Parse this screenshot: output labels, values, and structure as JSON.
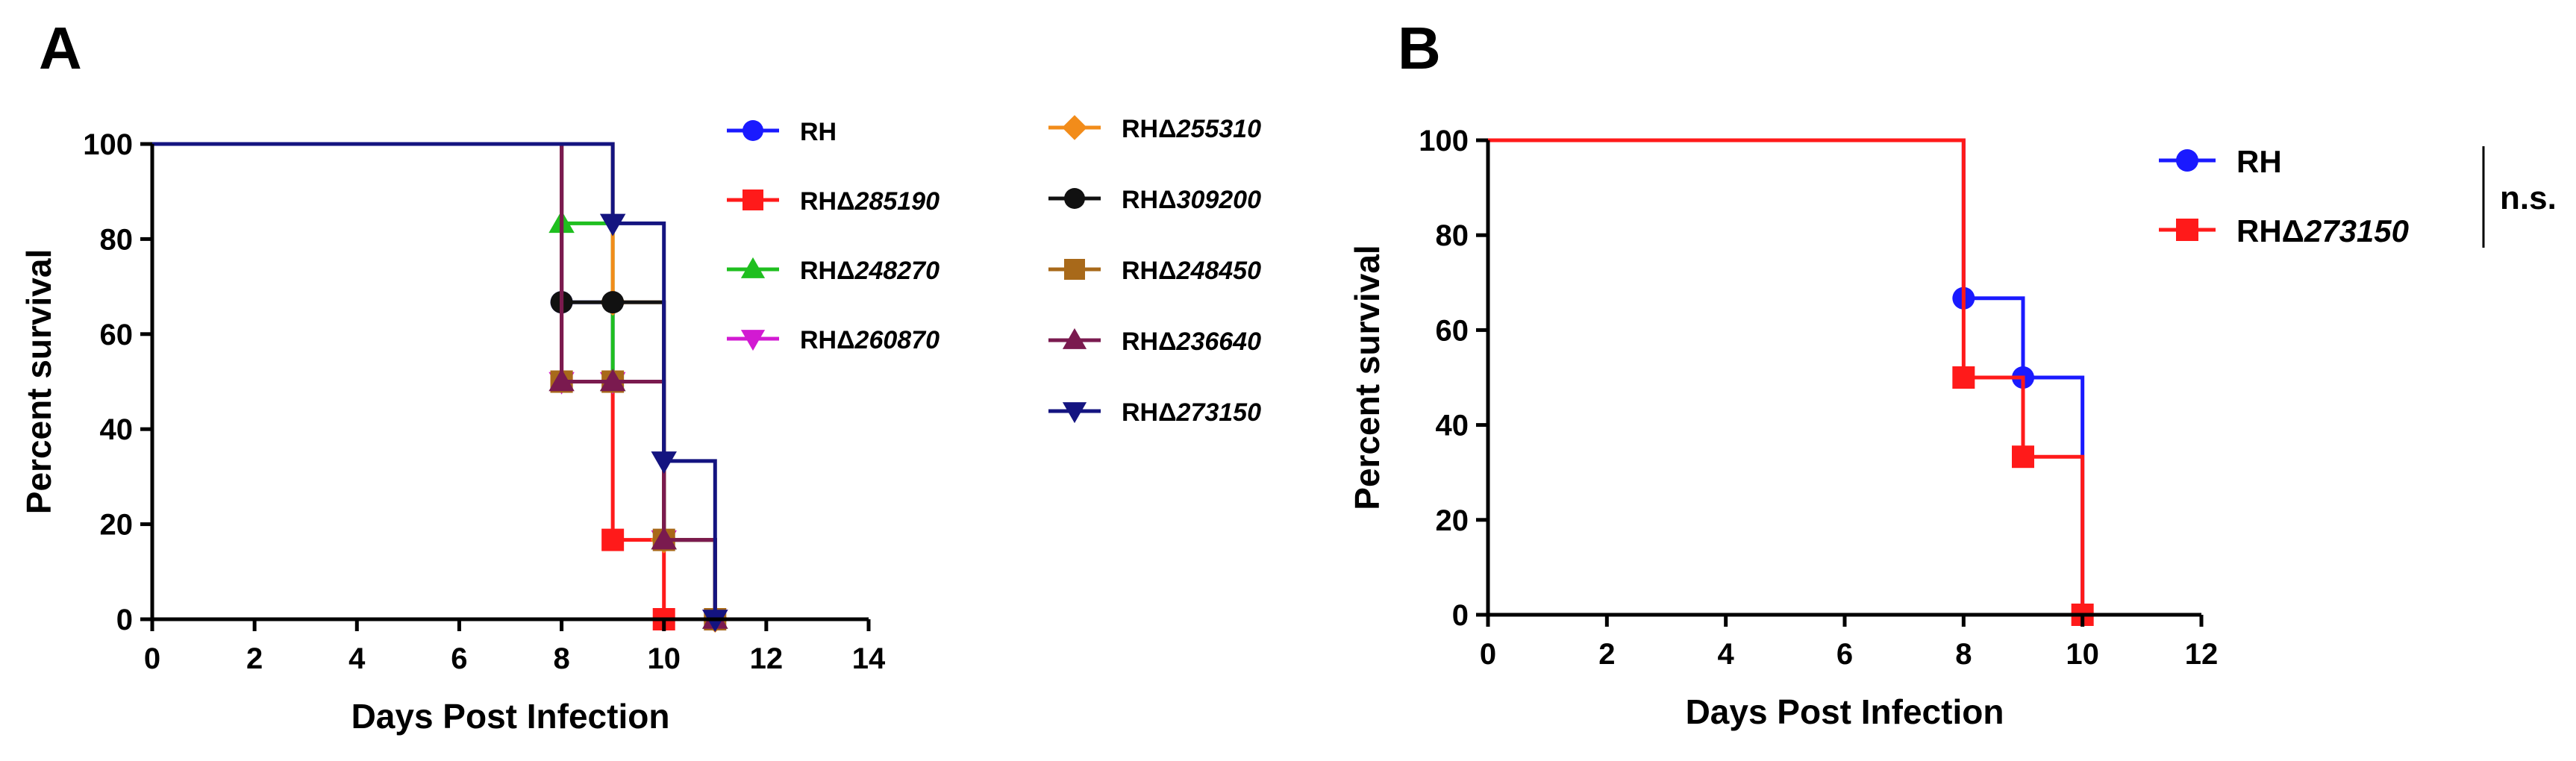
{
  "chart_data": [
    {
      "panel": "A",
      "type": "line",
      "subtype": "kaplan-meier-step",
      "title": "",
      "xlabel": "Days Post Infection",
      "ylabel": "Percent survival",
      "xlim": [
        0,
        14
      ],
      "ylim": [
        0,
        100
      ],
      "xticks": [
        0,
        2,
        4,
        6,
        8,
        10,
        12,
        14
      ],
      "yticks": [
        0,
        20,
        40,
        60,
        80,
        100
      ],
      "legend_position": "right",
      "series": [
        {
          "prefix": "RH",
          "strain": "",
          "color": "#1a1aff",
          "marker": "circle",
          "x": [
            0,
            8,
            9,
            10,
            11
          ],
          "y": [
            100,
            66.7,
            50,
            16.7,
            0
          ]
        },
        {
          "prefix": "RHΔ",
          "strain": "285190",
          "color": "#ff1a1a",
          "marker": "square",
          "x": [
            0,
            8,
            9,
            10
          ],
          "y": [
            100,
            50,
            16.7,
            0
          ]
        },
        {
          "prefix": "RHΔ",
          "strain": "248270",
          "color": "#1fbf1f",
          "marker": "triangle-up",
          "x": [
            0,
            8,
            9,
            10,
            11
          ],
          "y": [
            100,
            83.3,
            50,
            16.7,
            0
          ]
        },
        {
          "prefix": "RHΔ",
          "strain": "260870",
          "color": "#d21ad2",
          "marker": "triangle-down",
          "x": [
            0,
            8,
            9,
            10,
            11
          ],
          "y": [
            100,
            50,
            50,
            16.7,
            0
          ]
        },
        {
          "prefix": "RHΔ",
          "strain": "255310",
          "color": "#f28c1a",
          "marker": "diamond",
          "x": [
            0,
            9,
            10,
            11
          ],
          "y": [
            100,
            66.7,
            16.7,
            0
          ]
        },
        {
          "prefix": "RHΔ",
          "strain": "309200",
          "color": "#111111",
          "marker": "circle",
          "x": [
            0,
            8,
            9,
            10,
            11
          ],
          "y": [
            100,
            66.7,
            66.7,
            16.7,
            0
          ]
        },
        {
          "prefix": "RHΔ",
          "strain": "248450",
          "color": "#a8691a",
          "marker": "square",
          "x": [
            0,
            8,
            9,
            10,
            11
          ],
          "y": [
            100,
            50,
            50,
            16.7,
            0
          ]
        },
        {
          "prefix": "RHΔ",
          "strain": "236640",
          "color": "#7a1a4f",
          "marker": "triangle-up",
          "x": [
            0,
            8,
            9,
            10,
            11
          ],
          "y": [
            100,
            50,
            50,
            16.7,
            0
          ]
        },
        {
          "prefix": "RHΔ",
          "strain": "273150",
          "color": "#141480",
          "marker": "triangle-down",
          "x": [
            0,
            9,
            10,
            11
          ],
          "y": [
            100,
            83.3,
            33.3,
            0
          ]
        }
      ]
    },
    {
      "panel": "B",
      "type": "line",
      "subtype": "kaplan-meier-step",
      "title": "",
      "xlabel": "Days Post Infection",
      "ylabel": "Percent survival",
      "xlim": [
        0,
        12
      ],
      "ylim": [
        0,
        100
      ],
      "xticks": [
        0,
        2,
        4,
        6,
        8,
        10,
        12
      ],
      "yticks": [
        0,
        20,
        40,
        60,
        80,
        100
      ],
      "legend_position": "top-right",
      "significance": "n.s.",
      "series": [
        {
          "prefix": "RH",
          "strain": "",
          "color": "#1a1aff",
          "marker": "circle",
          "x": [
            0,
            8,
            9,
            10
          ],
          "y": [
            100,
            66.7,
            50,
            0
          ]
        },
        {
          "prefix": "RHΔ",
          "strain": "273150",
          "color": "#ff1a1a",
          "marker": "square",
          "x": [
            0,
            8,
            9,
            10
          ],
          "y": [
            100,
            50,
            33.3,
            0
          ]
        }
      ]
    }
  ]
}
